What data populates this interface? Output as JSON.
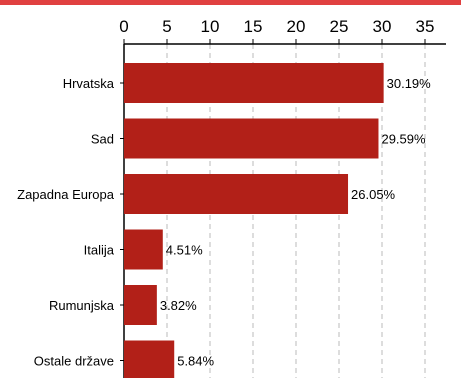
{
  "colors": {
    "accent_bar": "#e04040",
    "bar": "#b22018",
    "grid": "#bbbbbb",
    "axis": "#000000"
  },
  "chart_data": {
    "type": "bar",
    "orientation": "horizontal",
    "categories": [
      "Hrvatska",
      "Sad",
      "Zapadna Europa",
      "Italija",
      "Rumunjska",
      "Ostale države"
    ],
    "values": [
      30.19,
      29.59,
      26.05,
      4.51,
      3.82,
      5.84
    ],
    "value_labels": [
      "30.19%",
      "29.59%",
      "26.05%",
      "4.51%",
      "3.82%",
      "5.84%"
    ],
    "x_ticks": [
      0,
      5,
      10,
      15,
      20,
      25,
      30,
      35
    ],
    "xlim": [
      0,
      37
    ],
    "grid": true,
    "x_axis_position": "top",
    "title": "",
    "xlabel": "",
    "ylabel": ""
  }
}
